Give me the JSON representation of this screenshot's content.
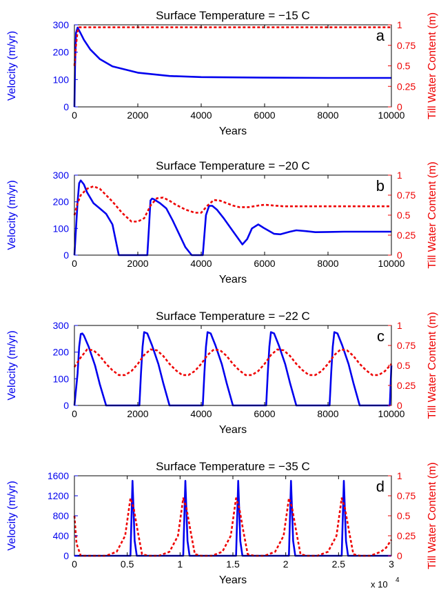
{
  "colors": {
    "velocity": "#0000ee",
    "water": "#ee0000",
    "axis": "#000000",
    "background": "#ffffff"
  },
  "chart_data": [
    {
      "type": "line",
      "panel_letter": "a",
      "title": "Surface Temperature = −15 C",
      "xlabel": "Years",
      "ylabel": "Velocity (m/yr)",
      "y2label": "Till Water Content (m)",
      "xlim": [
        0,
        10000
      ],
      "ylim": [
        0,
        300
      ],
      "y2lim": [
        0,
        1
      ],
      "xticks": [
        0,
        2000,
        4000,
        6000,
        8000,
        10000
      ],
      "xtick_labels": [
        "0",
        "2000",
        "4000",
        "6000",
        "8000",
        "10000"
      ],
      "yticks": [
        0,
        100,
        200,
        300
      ],
      "ytick_labels": [
        "0",
        "100",
        "200",
        "300"
      ],
      "y2ticks": [
        0,
        0.25,
        0.5,
        0.75,
        1
      ],
      "y2tick_labels": [
        "0",
        "0.25",
        "0.5",
        "0.75",
        "1"
      ],
      "series": [
        {
          "axis": "left",
          "style": "solid",
          "x": [
            0,
            20,
            50,
            100,
            200,
            300,
            500,
            800,
            1200,
            2000,
            3000,
            4000,
            6000,
            8000,
            10000
          ],
          "y": [
            0,
            150,
            270,
            290,
            268,
            245,
            210,
            175,
            148,
            125,
            113,
            109,
            107,
            106,
            106
          ]
        },
        {
          "axis": "right",
          "style": "dotted",
          "x": [
            0,
            50,
            100,
            150,
            200,
            10000
          ],
          "y": [
            0.5,
            0.75,
            0.92,
            0.97,
            0.97,
            0.97
          ]
        }
      ]
    },
    {
      "type": "line",
      "panel_letter": "b",
      "title": "Surface Temperature = −20 C",
      "xlabel": "Years",
      "ylabel": "Velocity (m/yr)",
      "y2label": "Till Water Content (m)",
      "xlim": [
        0,
        10000
      ],
      "ylim": [
        0,
        300
      ],
      "y2lim": [
        0,
        1
      ],
      "xticks": [
        0,
        2000,
        4000,
        6000,
        8000,
        10000
      ],
      "xtick_labels": [
        "0",
        "2000",
        "4000",
        "6000",
        "8000",
        "10000"
      ],
      "yticks": [
        0,
        100,
        200,
        300
      ],
      "ytick_labels": [
        "0",
        "100",
        "200",
        "300"
      ],
      "y2ticks": [
        0,
        0.25,
        0.5,
        0.75,
        1
      ],
      "y2tick_labels": [
        "0",
        "0.25",
        "0.5",
        "0.75",
        "1"
      ],
      "series": [
        {
          "axis": "left",
          "style": "solid",
          "x": [
            0,
            100,
            150,
            200,
            300,
            400,
            600,
            800,
            1000,
            1200,
            1400,
            2300,
            2350,
            2400,
            2450,
            2500,
            2700,
            2900,
            3100,
            3300,
            3500,
            3700,
            4050,
            4150,
            4250,
            4350,
            4500,
            4700,
            5000,
            5300,
            5450,
            5600,
            5800,
            6000,
            6300,
            6500,
            6800,
            7000,
            7300,
            7600,
            8000,
            8500,
            9000,
            10000
          ],
          "y": [
            0,
            200,
            270,
            280,
            265,
            235,
            195,
            175,
            155,
            115,
            0,
            0,
            100,
            205,
            212,
            210,
            195,
            175,
            130,
            80,
            30,
            0,
            0,
            150,
            185,
            185,
            170,
            140,
            90,
            40,
            60,
            100,
            115,
            100,
            80,
            78,
            88,
            93,
            90,
            86,
            87,
            88,
            88,
            88
          ]
        },
        {
          "axis": "right",
          "style": "dotted",
          "x": [
            0,
            100,
            200,
            400,
            600,
            800,
            1000,
            1200,
            1500,
            1800,
            2000,
            2200,
            2400,
            2600,
            2800,
            3000,
            3200,
            3500,
            3800,
            4000,
            4200,
            4400,
            4600,
            4800,
            5000,
            5200,
            5500,
            5800,
            6000,
            6300,
            6600,
            7000,
            7500,
            8000,
            10000
          ],
          "y": [
            0.5,
            0.65,
            0.75,
            0.83,
            0.86,
            0.83,
            0.75,
            0.67,
            0.53,
            0.42,
            0.42,
            0.46,
            0.62,
            0.71,
            0.72,
            0.68,
            0.63,
            0.57,
            0.53,
            0.53,
            0.62,
            0.69,
            0.68,
            0.65,
            0.62,
            0.6,
            0.6,
            0.62,
            0.63,
            0.62,
            0.61,
            0.61,
            0.61,
            0.61,
            0.61
          ]
        }
      ]
    },
    {
      "type": "line",
      "panel_letter": "c",
      "title": "Surface Temperature = −22 C",
      "xlabel": "Years",
      "ylabel": "Velocity (m/yr)",
      "y2label": "Till Water Content (m)",
      "xlim": [
        0,
        10000
      ],
      "ylim": [
        0,
        300
      ],
      "y2lim": [
        0,
        1
      ],
      "xticks": [
        0,
        2000,
        4000,
        6000,
        8000,
        10000
      ],
      "xtick_labels": [
        "0",
        "2000",
        "4000",
        "6000",
        "8000",
        "10000"
      ],
      "yticks": [
        0,
        100,
        200,
        300
      ],
      "ytick_labels": [
        "0",
        "100",
        "200",
        "300"
      ],
      "y2ticks": [
        0,
        0.25,
        0.5,
        0.75,
        1
      ],
      "y2tick_labels": [
        "0",
        "0.25",
        "0.5",
        "0.75",
        "1"
      ],
      "series": [
        {
          "axis": "left",
          "style": "solid",
          "x": [
            0,
            100,
            150,
            200,
            250,
            300,
            450,
            650,
            800,
            1000,
            2050,
            2100,
            2150,
            2200,
            2300,
            2450,
            2650,
            2800,
            3000,
            4050,
            4100,
            4150,
            4200,
            4300,
            4450,
            4650,
            4800,
            5000,
            6050,
            6100,
            6150,
            6200,
            6300,
            6450,
            6650,
            6800,
            7000,
            8050,
            8100,
            8150,
            8200,
            8300,
            8450,
            8650,
            8800,
            9000,
            9950,
            10000
          ],
          "y": [
            0,
            120,
            220,
            268,
            270,
            262,
            220,
            150,
            80,
            0,
            0,
            120,
            220,
            275,
            270,
            225,
            155,
            85,
            0,
            0,
            120,
            220,
            275,
            270,
            225,
            155,
            85,
            0,
            0,
            120,
            220,
            275,
            270,
            225,
            155,
            85,
            0,
            0,
            120,
            220,
            275,
            270,
            225,
            155,
            85,
            0,
            0,
            150
          ]
        },
        {
          "axis": "right",
          "style": "dotted",
          "x": [
            0,
            200,
            400,
            600,
            800,
            1000,
            1200,
            1400,
            1600,
            1800,
            2000,
            2200,
            2400,
            2600,
            2800,
            3000,
            3200,
            3400,
            3600,
            3800,
            4000,
            4200,
            4400,
            4600,
            4800,
            5000,
            5200,
            5400,
            5600,
            5800,
            6000,
            6200,
            6400,
            6600,
            6800,
            7000,
            7200,
            7400,
            7600,
            7800,
            8000,
            8200,
            8400,
            8600,
            8800,
            9000,
            9200,
            9400,
            9600,
            9800,
            10000
          ],
          "y": [
            0.48,
            0.6,
            0.7,
            0.69,
            0.62,
            0.52,
            0.44,
            0.38,
            0.38,
            0.43,
            0.52,
            0.63,
            0.7,
            0.69,
            0.62,
            0.52,
            0.44,
            0.38,
            0.38,
            0.43,
            0.52,
            0.63,
            0.7,
            0.69,
            0.62,
            0.52,
            0.44,
            0.38,
            0.38,
            0.43,
            0.52,
            0.63,
            0.7,
            0.69,
            0.62,
            0.52,
            0.44,
            0.38,
            0.38,
            0.43,
            0.52,
            0.63,
            0.7,
            0.69,
            0.62,
            0.52,
            0.44,
            0.38,
            0.38,
            0.43,
            0.52
          ]
        }
      ]
    },
    {
      "type": "line",
      "panel_letter": "d",
      "title": "Surface Temperature = −35 C",
      "xlabel": "Years",
      "xscale_label": "x 10",
      "xscale_exponent": "4",
      "ylabel": "Velocity (m/yr)",
      "y2label": "Till Water Content (m)",
      "xlim": [
        0,
        3
      ],
      "ylim": [
        0,
        1600
      ],
      "y2lim": [
        0,
        1
      ],
      "xticks": [
        0,
        0.5,
        1,
        1.5,
        2,
        2.5,
        3
      ],
      "xtick_labels": [
        "0",
        "0.5",
        "1",
        "1.5",
        "2",
        "2.5",
        "3"
      ],
      "yticks": [
        0,
        400,
        800,
        1200,
        1600
      ],
      "ytick_labels": [
        "0",
        "400",
        "800",
        "1200",
        "1600"
      ],
      "y2ticks": [
        0,
        0.25,
        0.5,
        0.75,
        1
      ],
      "y2tick_labels": [
        "0",
        "0.25",
        "0.5",
        "0.75",
        "1"
      ],
      "series": [
        {
          "axis": "left",
          "style": "solid",
          "x": [
            0,
            0.53,
            0.55,
            0.57,
            0.59,
            1.03,
            1.05,
            1.07,
            1.09,
            1.53,
            1.55,
            1.57,
            1.59,
            2.03,
            2.05,
            2.07,
            2.09,
            2.53,
            2.55,
            2.57,
            2.59,
            3
          ],
          "y": [
            0,
            0,
            1500,
            300,
            0,
            0,
            1500,
            300,
            0,
            0,
            1500,
            300,
            0,
            0,
            1500,
            300,
            0,
            0,
            1500,
            300,
            0,
            0
          ]
        },
        {
          "axis": "right",
          "style": "dotted",
          "x": [
            0,
            0.02,
            0.06,
            0.3,
            0.4,
            0.48,
            0.53,
            0.56,
            0.6,
            0.64,
            0.7,
            0.8,
            0.9,
            0.98,
            1.03,
            1.06,
            1.1,
            1.14,
            1.2,
            1.3,
            1.4,
            1.48,
            1.53,
            1.56,
            1.6,
            1.64,
            1.7,
            1.8,
            1.9,
            1.98,
            2.03,
            2.06,
            2.1,
            2.14,
            2.2,
            2.3,
            2.4,
            2.48,
            2.53,
            2.56,
            2.6,
            2.64,
            2.7,
            2.8,
            2.9,
            2.95,
            3
          ],
          "y": [
            0.5,
            0.15,
            0,
            0,
            0.05,
            0.25,
            0.72,
            0.6,
            0.3,
            0.02,
            0,
            0,
            0.05,
            0.25,
            0.72,
            0.6,
            0.3,
            0.02,
            0,
            0,
            0.05,
            0.25,
            0.72,
            0.6,
            0.3,
            0.02,
            0,
            0,
            0.05,
            0.25,
            0.72,
            0.6,
            0.3,
            0.02,
            0,
            0,
            0.05,
            0.25,
            0.72,
            0.6,
            0.3,
            0.02,
            0,
            0,
            0.05,
            0.1,
            0.2
          ]
        }
      ]
    }
  ]
}
